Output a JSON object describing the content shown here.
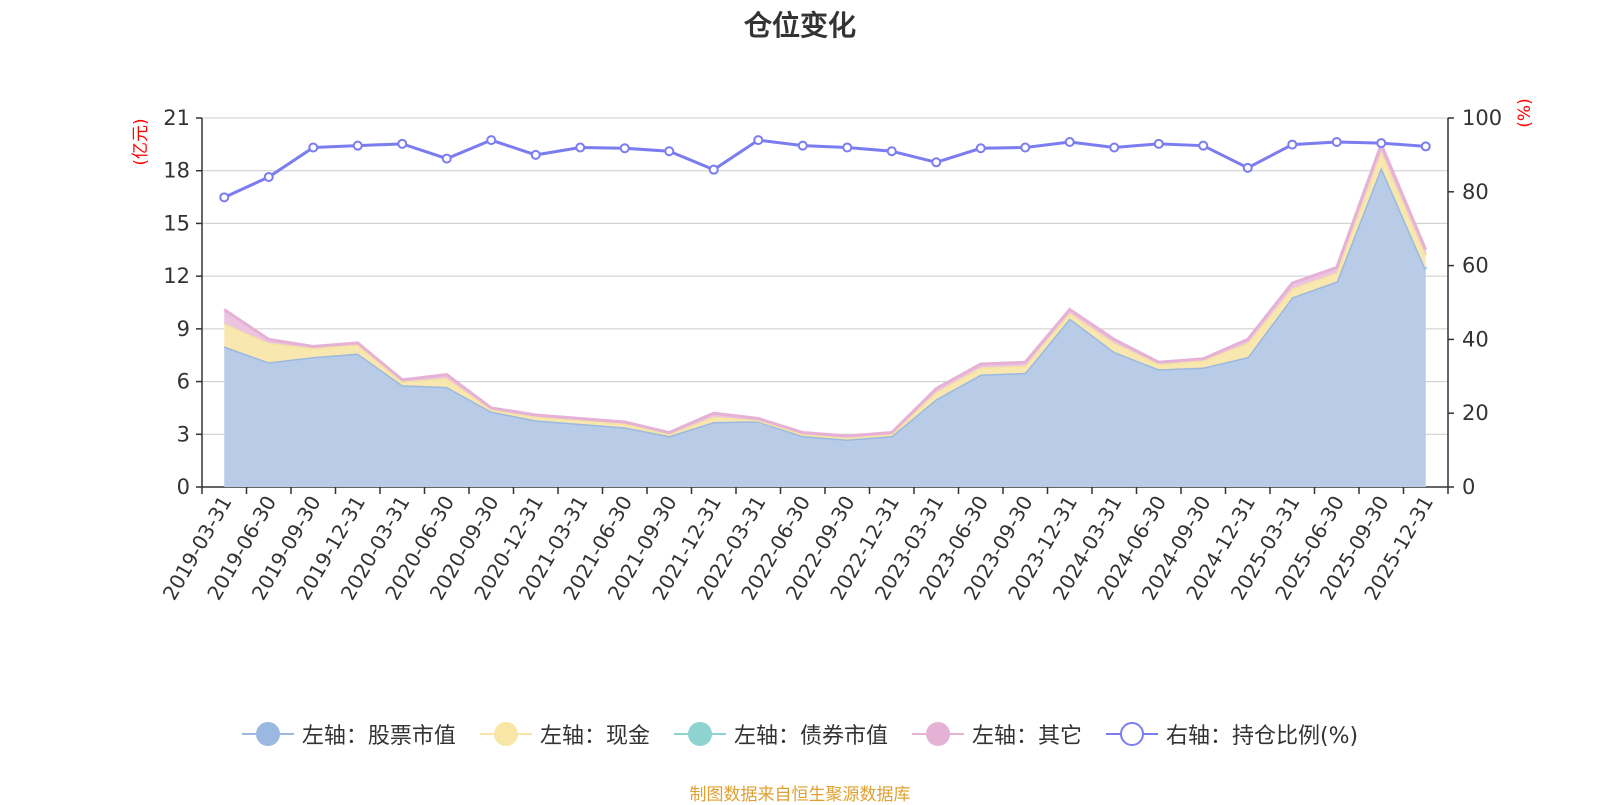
{
  "chart_data": {
    "type": "area",
    "title": "仓位变化",
    "left_axis_unit": "(亿元)",
    "right_axis_unit": "(%)",
    "left_ylim": [
      0,
      21
    ],
    "left_ticks": [
      0,
      3,
      6,
      9,
      12,
      15,
      18,
      21
    ],
    "right_ylim": [
      0,
      100
    ],
    "right_ticks": [
      0,
      20,
      40,
      60,
      80,
      100
    ],
    "grid": true,
    "legend_position": "bottom",
    "categories": [
      "2019-03-31",
      "2019-06-30",
      "2019-09-30",
      "2019-12-31",
      "2020-03-31",
      "2020-06-30",
      "2020-09-30",
      "2020-12-31",
      "2021-03-31",
      "2021-06-30",
      "2021-09-30",
      "2021-12-31",
      "2022-03-31",
      "2022-06-30",
      "2022-09-30",
      "2022-12-31",
      "2023-03-31",
      "2023-06-30",
      "2023-09-30",
      "2023-12-31",
      "2024-03-31",
      "2024-06-30",
      "2024-09-30",
      "2024-12-31",
      "2025-03-31",
      "2025-06-30",
      "2025-09-30",
      "2025-12-31"
    ],
    "series": [
      {
        "name": "左轴：股票市值",
        "axis": "left",
        "stacked": true,
        "color": "#9bb8e0",
        "fill": "#b8cce8",
        "values": [
          8.0,
          7.1,
          7.4,
          7.6,
          5.8,
          5.7,
          4.3,
          3.8,
          3.6,
          3.4,
          2.9,
          3.7,
          3.75,
          2.9,
          2.7,
          2.9,
          5.0,
          6.4,
          6.5,
          9.6,
          7.7,
          6.7,
          6.8,
          7.4,
          10.8,
          11.7,
          18.2,
          12.4
        ]
      },
      {
        "name": "左轴：现金",
        "axis": "left",
        "stacked": true,
        "color": "#f5e3a0",
        "fill": "#f8e8b0",
        "values": [
          1.3,
          1.1,
          0.5,
          0.5,
          0.2,
          0.5,
          0.1,
          0.2,
          0.2,
          0.2,
          0.1,
          0.3,
          0.05,
          0.1,
          0.1,
          0.1,
          0.4,
          0.4,
          0.4,
          0.3,
          0.5,
          0.3,
          0.4,
          0.8,
          0.5,
          0.5,
          0.9,
          0.8
        ]
      },
      {
        "name": "左轴：债券市值",
        "axis": "left",
        "stacked": true,
        "color": "#8fd3d0",
        "fill": "#9fd8d5",
        "values": [
          0,
          0,
          0,
          0,
          0,
          0,
          0,
          0,
          0,
          0,
          0,
          0,
          0,
          0,
          0,
          0,
          0,
          0,
          0,
          0,
          0,
          0,
          0,
          0,
          0,
          0,
          0,
          0
        ]
      },
      {
        "name": "左轴：其它",
        "axis": "left",
        "stacked": true,
        "color": "#e5b2d6",
        "fill": "#ecc4e0",
        "values": [
          0.8,
          0.2,
          0.1,
          0.1,
          0.1,
          0.2,
          0.1,
          0.1,
          0.1,
          0.1,
          0.1,
          0.2,
          0.1,
          0.1,
          0.1,
          0.1,
          0.2,
          0.2,
          0.2,
          0.2,
          0.2,
          0.1,
          0.1,
          0.2,
          0.3,
          0.3,
          0.4,
          0.3
        ]
      },
      {
        "name": "右轴：持仓比例(%)",
        "axis": "right",
        "stacked": false,
        "color": "#7b7cf0",
        "values": [
          78.5,
          84,
          92,
          92.5,
          93,
          89,
          94,
          90,
          92,
          91.8,
          91,
          86,
          94,
          92.5,
          92,
          91,
          88,
          91.8,
          92,
          93.5,
          92,
          93,
          92.5,
          86.5,
          92.8,
          93.5,
          93.2,
          92.3
        ]
      }
    ]
  },
  "legend": {
    "items": [
      {
        "label": "左轴：股票市值",
        "color": "#9bb8e0",
        "hollow": false
      },
      {
        "label": "左轴：现金",
        "color": "#f8e6a6",
        "hollow": false
      },
      {
        "label": "左轴：债券市值",
        "color": "#8fd3d0",
        "hollow": false
      },
      {
        "label": "左轴：其它",
        "color": "#e5b2d6",
        "hollow": false
      },
      {
        "label": "右轴：持仓比例(%)",
        "color": "#7b7cf0",
        "hollow": true
      }
    ]
  },
  "source_note": "制图数据来自恒生聚源数据库"
}
